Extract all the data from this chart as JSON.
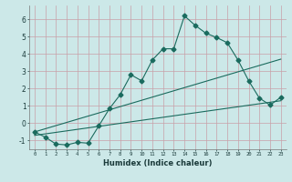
{
  "title": "",
  "xlabel": "Humidex (Indice chaleur)",
  "ylabel": "",
  "background_color": "#cce8e8",
  "line_color": "#1a6b5e",
  "xlim": [
    -0.5,
    23.5
  ],
  "ylim": [
    -1.5,
    6.8
  ],
  "xticks": [
    0,
    1,
    2,
    3,
    4,
    5,
    6,
    7,
    8,
    9,
    10,
    11,
    12,
    13,
    14,
    15,
    16,
    17,
    18,
    19,
    20,
    21,
    22,
    23
  ],
  "yticks": [
    -1,
    0,
    1,
    2,
    3,
    4,
    5,
    6
  ],
  "series": [
    {
      "x": [
        0,
        1,
        2,
        3,
        4,
        5,
        6,
        7,
        8,
        9,
        10,
        11,
        12,
        13,
        14,
        15,
        16,
        17,
        18,
        19,
        20,
        21,
        22,
        23
      ],
      "y": [
        -0.5,
        -0.8,
        -1.2,
        -1.25,
        -1.1,
        -1.15,
        -0.15,
        0.85,
        1.65,
        2.8,
        2.45,
        3.65,
        4.3,
        4.3,
        6.2,
        5.65,
        5.2,
        4.95,
        4.65,
        3.65,
        2.45,
        1.45,
        1.05,
        1.5
      ],
      "marker": "D",
      "markersize": 2.5
    },
    {
      "x": [
        0,
        23
      ],
      "y": [
        -0.5,
        3.7
      ],
      "marker": null,
      "markersize": 0
    },
    {
      "x": [
        0,
        23
      ],
      "y": [
        -0.7,
        1.3
      ],
      "marker": null,
      "markersize": 0
    }
  ]
}
